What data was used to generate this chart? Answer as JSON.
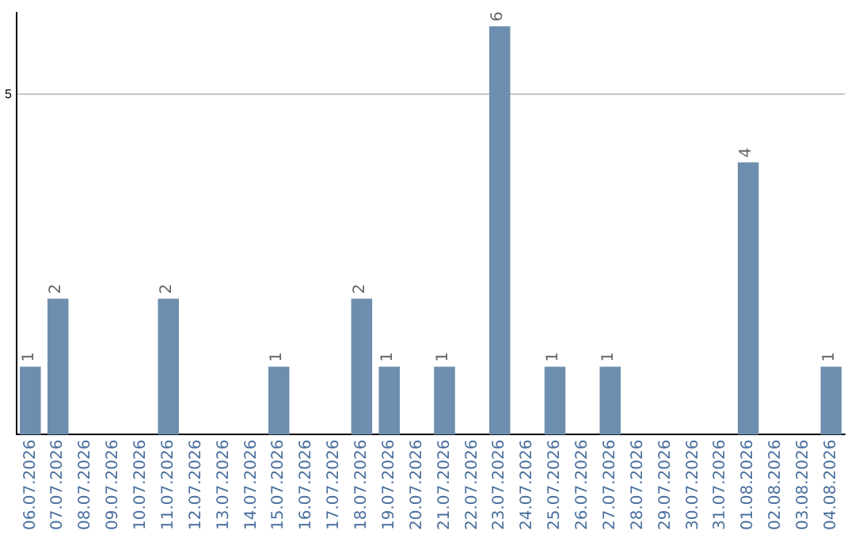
{
  "chart_data": {
    "type": "bar",
    "categories": [
      "06.07.2026",
      "07.07.2026",
      "08.07.2026",
      "09.07.2026",
      "10.07.2026",
      "11.07.2026",
      "12.07.2026",
      "13.07.2026",
      "14.07.2026",
      "15.07.2026",
      "16.07.2026",
      "17.07.2026",
      "18.07.2026",
      "19.07.2026",
      "20.07.2026",
      "21.07.2026",
      "22.07.2026",
      "23.07.2026",
      "24.07.2026",
      "25.07.2026",
      "26.07.2026",
      "27.07.2026",
      "28.07.2026",
      "29.07.2026",
      "30.07.2026",
      "31.07.2026",
      "01.08.2026",
      "02.08.2026",
      "03.08.2026",
      "04.08.2026"
    ],
    "values": [
      1,
      2,
      0,
      0,
      0,
      2,
      0,
      0,
      0,
      1,
      0,
      0,
      2,
      1,
      0,
      1,
      0,
      6,
      0,
      1,
      0,
      1,
      0,
      0,
      0,
      0,
      4,
      0,
      0,
      1
    ],
    "value_labels": [
      "1",
      "2",
      null,
      null,
      null,
      "2",
      null,
      null,
      null,
      "1",
      null,
      null,
      "2",
      "1",
      null,
      "1",
      null,
      "6",
      null,
      "1",
      null,
      "1",
      null,
      null,
      null,
      null,
      "4",
      null,
      null,
      "1"
    ],
    "color": "#6d8eae",
    "ylim": [
      0,
      6.2
    ],
    "yticks": [
      5
    ],
    "grid": "y",
    "legend": false
  }
}
